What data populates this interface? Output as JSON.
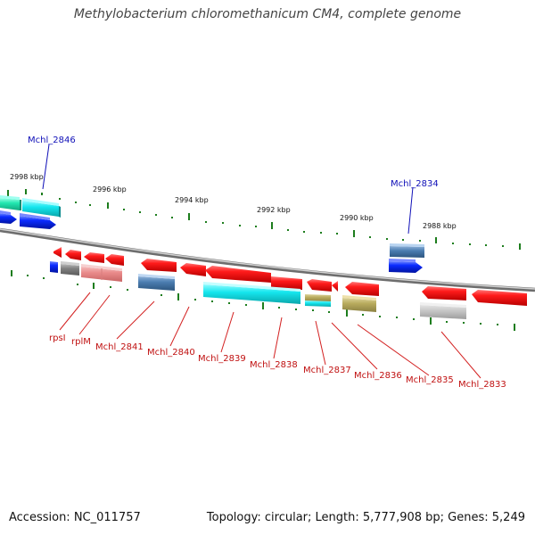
{
  "title": "Methylobacterium chloromethanicum CM4, complete genome",
  "footer": {
    "accession": "Accession: NC_011757",
    "summary": "Topology: circular; Length: 5,777,908 bp; Genes: 5,249"
  },
  "scale_labels": [
    "2998 kbp",
    "2996 kbp",
    "2994 kbp",
    "2992 kbp",
    "2990 kbp",
    "2988 kbp"
  ],
  "gene_labels_top": [
    "Mchl_2846",
    "Mchl_2834"
  ],
  "gene_labels_bottom": [
    "rpsI",
    "rplM",
    "Mchl_2841",
    "Mchl_2840",
    "Mchl_2839",
    "Mchl_2838",
    "Mchl_2837",
    "Mchl_2836",
    "Mchl_2835",
    "Mchl_2833"
  ],
  "colors": {
    "backbone": "#888888",
    "gene_red": "#ff1111",
    "gene_blue": "#0a27ff",
    "gene_cyan": "#15e3e9",
    "gene_steel": "#4a7cae",
    "gene_pink": "#e98e8e",
    "gene_olive": "#b8ad63",
    "gene_gray": "#8f8f8f",
    "gene_lightgray": "#c6c6c6",
    "gene_teal": "#1ee8b2",
    "label_blue": "#1010b8",
    "label_red": "#c01010",
    "tick_green": "#1d7d1d"
  }
}
